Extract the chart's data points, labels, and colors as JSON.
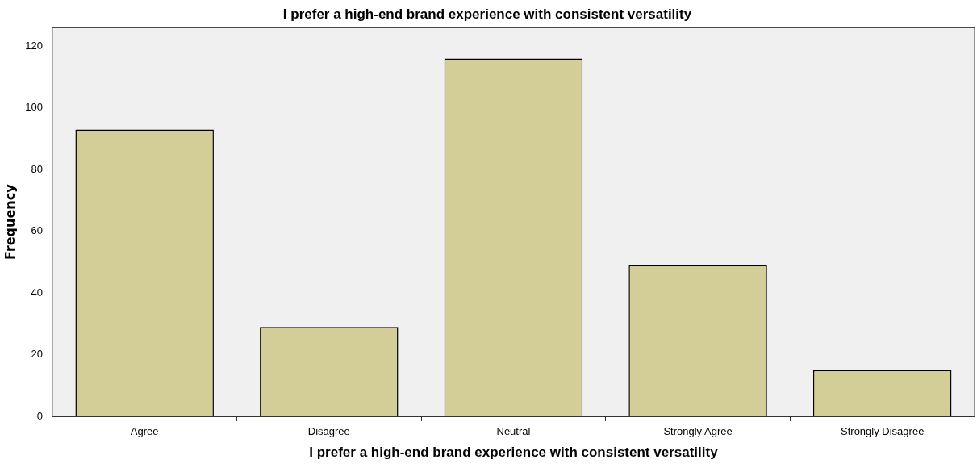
{
  "chart_data": {
    "type": "bar",
    "title": "I prefer a high-end brand experience with consistent versatility",
    "xlabel": "I prefer a high-end brand experience with consistent versatility",
    "ylabel": "Frequency",
    "categories": [
      "Agree",
      "Disagree",
      "Neutral",
      "Strongly Agree",
      "Strongly Disagree"
    ],
    "values": [
      93,
      29,
      116,
      49,
      15
    ],
    "color": "#d3ce97",
    "ylim": [
      0,
      126
    ],
    "yticks": [
      0,
      20,
      40,
      60,
      80,
      100,
      120
    ],
    "grid": false,
    "legend": false
  }
}
